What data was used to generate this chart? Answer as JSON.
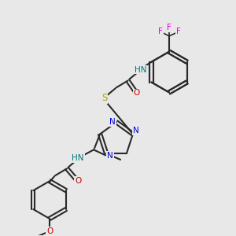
{
  "bg": "#e8e8e8",
  "bc": "#2a2a2a",
  "NC": "#0000dd",
  "OC": "#cc0000",
  "SC": "#aaaa00",
  "FC": "#dd00dd",
  "HC": "#007777",
  "figsize": [
    3.0,
    3.0
  ],
  "dpi": 100,
  "xlim": [
    0,
    300
  ],
  "ylim": [
    300,
    0
  ]
}
